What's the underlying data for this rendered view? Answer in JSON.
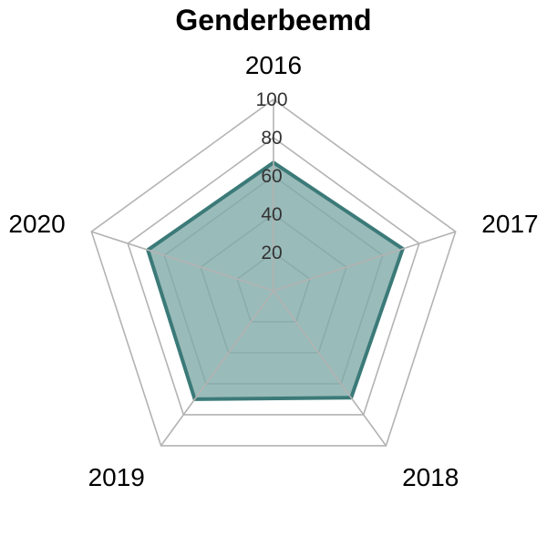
{
  "chart_data": {
    "type": "radar",
    "title": "Genderbeemd",
    "categories": [
      "2016",
      "2017",
      "2018",
      "2019",
      "2020"
    ],
    "series": [
      {
        "values": [
          67,
          71,
          69,
          70,
          69
        ]
      }
    ],
    "rlim": [
      0,
      100
    ],
    "ticks": [
      20,
      40,
      60,
      80,
      100
    ],
    "grid": true,
    "legend": "none",
    "colors": {
      "line": "#3b7a78",
      "fill": "#7faaa8",
      "grid": "#b3b3b3"
    }
  }
}
